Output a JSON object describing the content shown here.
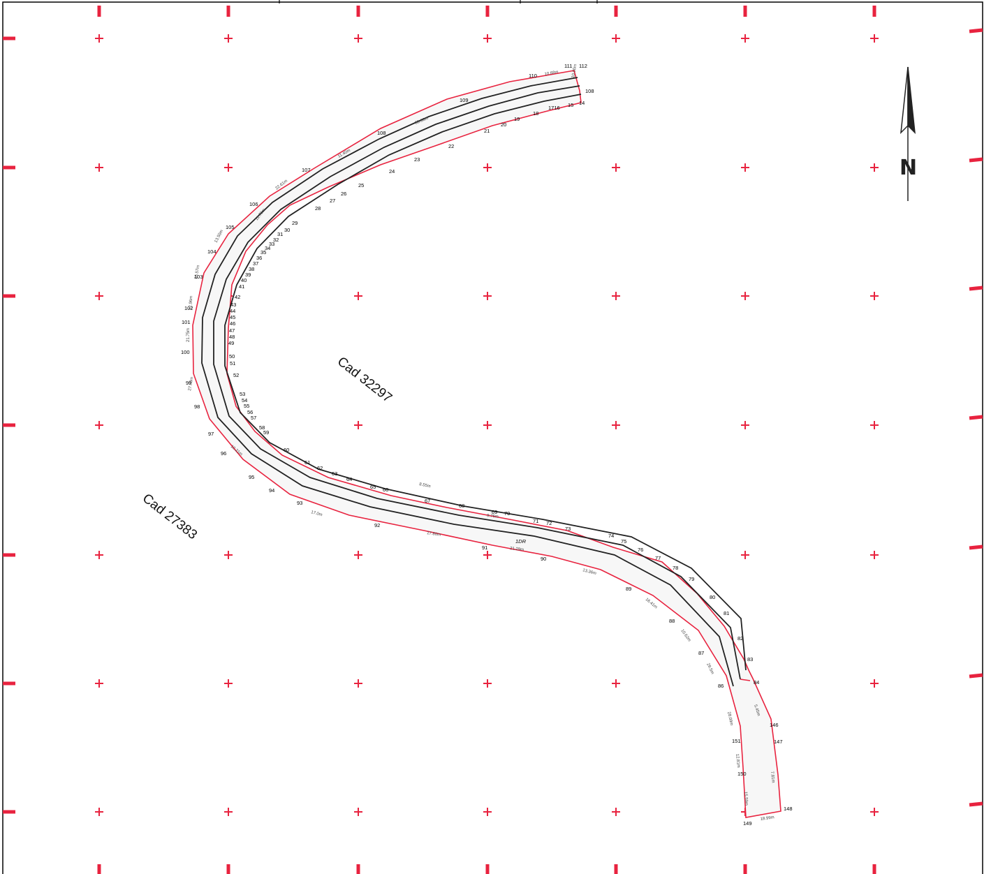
{
  "parcels": {
    "cad_a": "Cad 32297",
    "cad_b": "Cad 27383"
  },
  "road_label": "1DR",
  "north_arrow": {
    "letter": "N",
    "icon": "north-arrow-icon"
  },
  "colors": {
    "boundary": "#e8233f",
    "road": "#222222",
    "grid": "#e8233f"
  },
  "point_labels": [
    "111",
    "112",
    "110",
    "108",
    "109",
    "14",
    "15",
    "1716",
    "18",
    "19",
    "20",
    "21",
    "22",
    "23",
    "24",
    "25",
    "26",
    "27",
    "28",
    "29",
    "30",
    "31",
    "32",
    "33",
    "34",
    "35",
    "36",
    "37",
    "38",
    "39",
    "40",
    "41",
    "42",
    "43",
    "44",
    "45",
    "46",
    "47",
    "48",
    "49",
    "50",
    "51",
    "52",
    "53",
    "54",
    "55",
    "56",
    "57",
    "58",
    "59",
    "60",
    "61",
    "62",
    "63",
    "64",
    "65",
    "66",
    "67",
    "68",
    "69",
    "70",
    "71",
    "72",
    "73",
    "74",
    "75",
    "76",
    "77",
    "78",
    "79",
    "80",
    "81",
    "82",
    "83",
    "84",
    "146",
    "147",
    "148",
    "149",
    "150",
    "151",
    "86",
    "87",
    "88",
    "89",
    "90",
    "91",
    "92",
    "93",
    "94",
    "95",
    "96",
    "97",
    "98",
    "99",
    "100",
    "101",
    "102",
    "103",
    "104",
    "105",
    "106",
    "107",
    "108"
  ],
  "dimensions": [
    "10.68m",
    "10.00m",
    "35.68m",
    "11.40m",
    "22.61m",
    "11.70m",
    "13.50m",
    "15.57m",
    "12.96m",
    "21.75m",
    "27.70m",
    "10.21m",
    "17.0m",
    "17.80m",
    "21.29m",
    "13.36m",
    "16.41m",
    "10.62m",
    "29.5m",
    "28.09m",
    "12.81m",
    "15.59m",
    "18.99m",
    "5.45m",
    "7.81m",
    "8.55m",
    "9.76m"
  ]
}
